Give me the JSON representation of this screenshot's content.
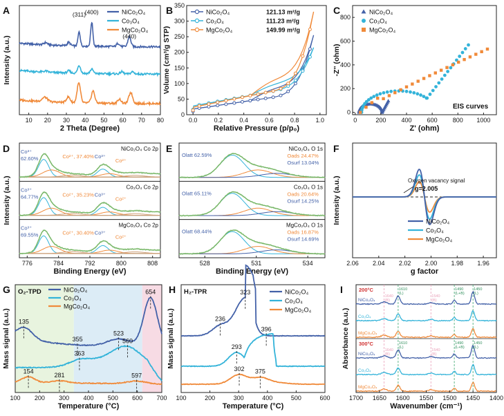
{
  "colors": {
    "blue": "#4361a8",
    "cyan": "#33b3d9",
    "orange": "#f08a3a",
    "green": "#8fcf7a",
    "fit_green": "#a7d49a",
    "grey_dash": "#555555",
    "pink": "#e99fb8"
  },
  "chart_data": [
    {
      "id": "A",
      "type": "line",
      "letter": "A",
      "xlabel": "2 Theta (Degree)",
      "ylabel": "Intensity (a.u.)",
      "xlim": [
        5,
        80
      ],
      "ylim": [
        0,
        10
      ],
      "xticks": [
        10,
        20,
        30,
        40,
        50,
        60,
        70,
        80
      ],
      "legend": [
        "NiCo₂O₄",
        "Co₃O₄",
        "MgCo₂O₄"
      ],
      "legend_position": "top-right",
      "peak_labels": [
        {
          "text": "(311)",
          "x": 36.8,
          "y": 9.0
        },
        {
          "text": "(400)",
          "x": 43.5,
          "y": 9.2
        },
        {
          "text": "(440)",
          "x": 63.5,
          "y": 7.0
        }
      ],
      "series": [
        {
          "name": "NiCo₂O₄",
          "color": "blue",
          "base": 6.2,
          "amp": 1.0,
          "peaks": [
            [
              19,
              0.2,
              1.0
            ],
            [
              31.3,
              0.3,
              0.8
            ],
            [
              36.8,
              1.3,
              0.6
            ],
            [
              43.5,
              2.2,
              0.6
            ],
            [
              57.5,
              0.3,
              0.8
            ],
            [
              63.5,
              0.9,
              0.8
            ]
          ]
        },
        {
          "name": "Co₃O₄",
          "color": "cyan",
          "base": 3.7,
          "amp": 0.7,
          "peaks": [
            [
              19,
              0.1,
              1.0
            ],
            [
              31.3,
              0.2,
              0.8
            ],
            [
              36.8,
              0.7,
              0.8
            ],
            [
              43.5,
              0.4,
              0.8
            ],
            [
              59.5,
              0.2,
              0.8
            ],
            [
              65.2,
              0.2,
              0.8
            ]
          ]
        },
        {
          "name": "MgCo₂O₄",
          "color": "orange",
          "base": 1.0,
          "amp": 1.0,
          "peaks": [
            [
              18.5,
              0.4,
              1.4
            ],
            [
              31,
              0.5,
              1.0
            ],
            [
              36.6,
              1.8,
              0.9
            ],
            [
              44.2,
              1.1,
              0.9
            ],
            [
              58.2,
              0.4,
              0.9
            ],
            [
              64.2,
              1.0,
              1.0
            ]
          ]
        }
      ]
    },
    {
      "id": "B",
      "type": "line",
      "letter": "B",
      "xlabel": "Relative Pressure (p/p₀)",
      "ylabel": "Volume (cm³/g STP)",
      "xlim": [
        -0.05,
        1.05
      ],
      "ylim": [
        0,
        350
      ],
      "xticks": [
        0.0,
        0.2,
        0.4,
        0.6,
        0.8,
        1.0
      ],
      "yticks": [
        0,
        50,
        100,
        150,
        200,
        250,
        300,
        350
      ],
      "legend": [
        "NiCo₂O₄",
        "Co₃O₄",
        "MgCo₂O₄"
      ],
      "legend_values": [
        "121.13 m²/g",
        "111.23 m²/g",
        "149.99 m²/g"
      ],
      "legend_position": "top-left",
      "series": [
        {
          "name": "NiCo₂O₄",
          "color": "blue",
          "low": 18,
          "slope": 60,
          "top": 255
        },
        {
          "name": "Co₃O₄",
          "color": "cyan",
          "low": 28,
          "slope": 75,
          "top": 215
        },
        {
          "name": "MgCo₂O₄",
          "color": "orange",
          "low": 24,
          "slope": 82,
          "top": 330
        }
      ]
    },
    {
      "id": "C",
      "type": "scatter",
      "letter": "C",
      "xlabel": "Z' (ohm)",
      "ylabel": "-Z'' (ohm)",
      "xlim": [
        -20,
        1100
      ],
      "ylim": [
        -20,
        900
      ],
      "xticks": [
        0,
        200,
        400,
        600,
        800,
        1000
      ],
      "yticks": [
        0,
        200,
        400,
        600,
        800
      ],
      "legend": [
        "NiCo₂O₄",
        "Co₃O₄",
        "MgCo₂O₄"
      ],
      "legend_position": "top-left",
      "annotation": "EIS curves"
    },
    {
      "id": "D",
      "type": "line",
      "letter": "D",
      "xlabel": "Binding Energy (eV)",
      "ylabel": "Intensity (a.u.)",
      "xlim": [
        774,
        810
      ],
      "xticks": [
        776,
        784,
        792,
        800,
        808
      ],
      "subpanels": [
        {
          "title": "NiCo₂O₄ Co 2p",
          "label_a": "Co³⁺",
          "value_a": "62.60%",
          "label_b": "Co²⁺",
          "value_b": "37.40%",
          "label_c": "Co³⁺",
          "label_d": "Co²⁺"
        },
        {
          "title": "Co₃O₄ Co 2p",
          "label_a": "Co³⁺",
          "value_a": "64.77%",
          "label_b": "Co²⁺",
          "value_b": "35.23%",
          "label_c": "Co³⁺",
          "label_d": "Co²⁺"
        },
        {
          "title": "MgCo₂O₄ Co 2p",
          "label_a": "Co³⁺",
          "value_a": "69.55%",
          "label_b": "Co²⁺",
          "value_b": "30.40%",
          "label_c": "Co³⁺",
          "label_d": "Co²⁺"
        }
      ]
    },
    {
      "id": "E",
      "type": "line",
      "letter": "E",
      "xlabel": "Binding Energy (eV)",
      "xlim": [
        526.5,
        535
      ],
      "xticks": [
        528,
        531,
        534
      ],
      "subpanels": [
        {
          "title": "NiCo₂O₄ O 1s",
          "lat": "O",
          "lat_sub": "latt",
          "lat_val": "62.59%",
          "ads": "O",
          "ads_sub": "ads",
          "ads_val": "24.47%",
          "surf": "O",
          "surf_sub": "surf",
          "surf_val": "13.04%"
        },
        {
          "title": "Co₃O₄ O 1s",
          "lat": "O",
          "lat_sub": "latt",
          "lat_val": "65.11%",
          "ads": "O",
          "ads_sub": "ads",
          "ads_val": "20.64%",
          "surf": "O",
          "surf_sub": "surf",
          "surf_val": "14.25%"
        },
        {
          "title": "MgCo₂O₄ O 1s",
          "lat": "O",
          "lat_sub": "latt",
          "lat_val": "68.44%",
          "ads": "O",
          "ads_sub": "ads",
          "ads_val": "16.87%",
          "surf": "O",
          "surf_sub": "surf",
          "surf_val": "14.69%"
        }
      ]
    },
    {
      "id": "F",
      "type": "line",
      "letter": "F",
      "xlabel": "g factor",
      "ylabel": "Intensity (a.u.)",
      "xlim": [
        2.06,
        1.95
      ],
      "xticks": [
        2.06,
        2.04,
        2.02,
        2.0,
        1.98,
        1.96
      ],
      "xtick_labels": [
        "2.06",
        "2.04",
        "2.02",
        "2.00",
        "1.98",
        "1.96"
      ],
      "annotation": "Oxygen vacancy signal",
      "annotation2": "g=2.005",
      "legend": [
        "NiCo₂O₄",
        "Co₃O₄",
        "MgCo₂O₄"
      ],
      "legend_position": "bottom-right",
      "series": [
        {
          "color": "blue",
          "amp": 1.0
        },
        {
          "color": "cyan",
          "amp": 0.8
        },
        {
          "color": "orange",
          "amp": 0.55
        }
      ]
    },
    {
      "id": "G",
      "type": "line",
      "letter": "G",
      "title": "O₂-TPD",
      "xlabel": "Temperature (°C)",
      "ylabel": "Mass signal (a.u.)",
      "xlim": [
        100,
        700
      ],
      "xticks": [
        100,
        200,
        300,
        400,
        500,
        600,
        700
      ],
      "legend": [
        "NiCo₂O₄",
        "Co₃O₄",
        "MgCo₂O₄"
      ],
      "legend_position": "top-center",
      "peaks": [
        {
          "text": "135",
          "x": 135,
          "s": 0
        },
        {
          "text": "355",
          "x": 355,
          "s": 0
        },
        {
          "text": "523",
          "x": 523,
          "s": 0
        },
        {
          "text": "654",
          "x": 654,
          "s": 0
        },
        {
          "text": "363",
          "x": 363,
          "s": 1
        },
        {
          "text": "560",
          "x": 560,
          "s": 1
        },
        {
          "text": "154",
          "x": 154,
          "s": 2
        },
        {
          "text": "281",
          "x": 281,
          "s": 2
        },
        {
          "text": "597",
          "x": 597,
          "s": 2
        }
      ]
    },
    {
      "id": "H",
      "type": "line",
      "letter": "H",
      "title": "H₂-TPR",
      "xlabel": "Temperature (°C)",
      "ylabel": "Mass signal (a.u.)",
      "xlim": [
        100,
        600
      ],
      "xticks": [
        100,
        200,
        300,
        400,
        500,
        600
      ],
      "legend": [
        "NiCo₂O₄",
        "Co₃O₄",
        "MgCo₂O₄"
      ],
      "legend_position": "top-right",
      "peaks": [
        {
          "text": "236",
          "x": 236,
          "s": 0
        },
        {
          "text": "323",
          "x": 323,
          "s": 0
        },
        {
          "text": "293",
          "x": 293,
          "s": 1
        },
        {
          "text": "396",
          "x": 396,
          "s": 1
        },
        {
          "text": "302",
          "x": 302,
          "s": 2
        },
        {
          "text": "375",
          "x": 375,
          "s": 2
        }
      ]
    },
    {
      "id": "I",
      "type": "line",
      "letter": "I",
      "xlabel": "Wavenumber (cm⁻¹)",
      "ylabel": "Absorbance (a.u.)",
      "xlim": [
        1700,
        1400
      ],
      "xticks": [
        1700,
        1650,
        1600,
        1550,
        1500,
        1450,
        1400
      ],
      "temp_top": "200°C",
      "temp_bottom": "300°C",
      "sample_labels": [
        "NiCo₂O₄",
        "Co₃O₄",
        "MgCo₂O₄"
      ],
      "band_labels": [
        "1610",
        "1490",
        "1450",
        "1610",
        "1490",
        "1450"
      ],
      "band_tags": [
        "(L)",
        "(L+B)",
        "(L)",
        "(L)",
        "(L+B)",
        "(L)"
      ],
      "faint_labels": [
        "1640",
        "1540",
        "1640",
        "1540"
      ],
      "faint_tags": [
        "(B)",
        "(B)",
        "(B)",
        "(B)"
      ]
    }
  ]
}
